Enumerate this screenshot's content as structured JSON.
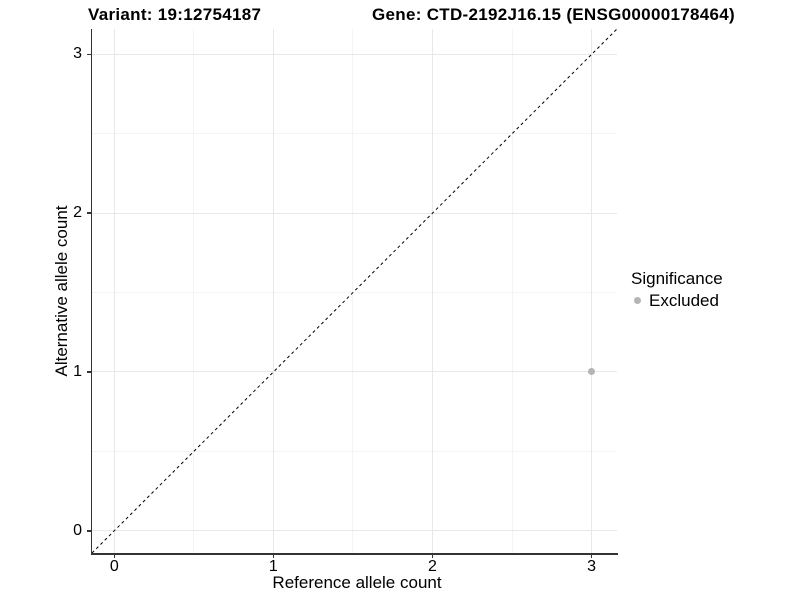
{
  "header": {
    "variant_title": "Variant: 19:12754187",
    "gene_title": "Gene: CTD-2192J16.15 (ENSG00000178464)"
  },
  "chart_data": {
    "type": "scatter",
    "title": "Variant: 19:12754187    Gene: CTD-2192J16.15 (ENSG00000178464)",
    "xlabel": "Reference allele count",
    "ylabel": "Alternative allele count",
    "xlim": [
      -0.14,
      3.16
    ],
    "ylim": [
      -0.14,
      3.16
    ],
    "xticks": [
      0,
      1,
      2,
      3
    ],
    "yticks": [
      0,
      1,
      2,
      3
    ],
    "xtick_labels": [
      "0",
      "1",
      "2",
      "3"
    ],
    "ytick_labels": [
      "0",
      "1",
      "2",
      "3"
    ],
    "x_minor": [
      0.5,
      1.5,
      2.5
    ],
    "y_minor": [
      0.5,
      1.5,
      2.5
    ],
    "grid": "major+minor",
    "legend_title": "Significance",
    "legend_position": "right-center",
    "series": [
      {
        "name": "Excluded",
        "color": "#b5b5b5",
        "points": [
          [
            3,
            1
          ]
        ]
      }
    ],
    "identity_line": {
      "slope": 1,
      "intercept": 0,
      "style": "dashed",
      "color": "#000000"
    }
  },
  "style": {
    "major_grid_color": "#e8e8e8",
    "minor_grid_color": "#f4f4f4",
    "axis_line_color": "#333333",
    "point_color": "#b5b5b5",
    "background": "#ffffff"
  }
}
